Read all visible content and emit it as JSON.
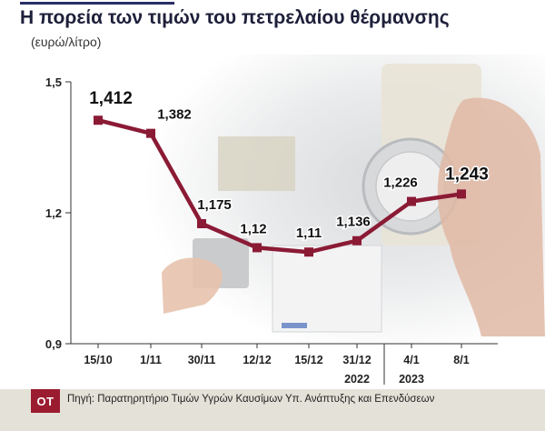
{
  "header": {
    "title": "Η πορεία των τιμών του πετρελαίου θέρμανσης",
    "subtitle": "(ευρώ/λίτρο)"
  },
  "footer": {
    "logo_text": "ΟΤ",
    "source": "Πηγή: Παρατηρητήριο Τιμών Υγρών Καυσίμων Υπ. Ανάπτυξης και Επενδύσεων"
  },
  "colors": {
    "line": "#8b1a35",
    "logo": "#9b1b30"
  },
  "chart_data": {
    "type": "line",
    "categories": [
      "15/10",
      "1/11",
      "30/11",
      "12/12",
      "15/12",
      "31/12",
      "4/1",
      "8/1"
    ],
    "values": [
      1.412,
      1.382,
      1.175,
      1.12,
      1.11,
      1.136,
      1.226,
      1.243
    ],
    "value_labels": [
      "1,412",
      "1,382",
      "1,175",
      "1,12",
      "1,11",
      "1,136",
      "1,226",
      "1,243"
    ],
    "year_labels": [
      {
        "text": "2022",
        "from": 0,
        "to": 5
      },
      {
        "text": "2023",
        "from": 6,
        "to": 7
      }
    ],
    "ylim": [
      0.9,
      1.5
    ],
    "yticks": [
      0.9,
      1.2,
      1.5
    ],
    "ytick_labels": [
      "0,9",
      "1,2",
      "1,5"
    ],
    "grid": false,
    "xlabel": "",
    "ylabel": ""
  }
}
